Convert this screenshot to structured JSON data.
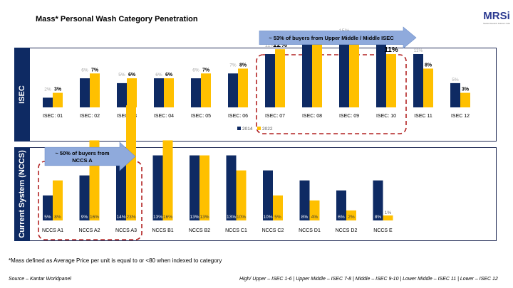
{
  "page": {
    "title": "Mass* Personal Wash Category Penetration",
    "footnote": "*Mass defined as Average Price per unit is equal to or <80 when indexed to category",
    "source": "Source – Kantar Worldpanel",
    "class_note": "High/ Upper – ISEC 1-6 | Upper Middle – ISEC 7-8 | Middle – ISEC 9-10 | Lower Middle – ISEC 11 | Lower – ISEC  12",
    "logo_text": "MRSi",
    "logo_subtext": "Market Research Solutions India"
  },
  "colors": {
    "navy": "#0e2a63",
    "gold": "#ffc000",
    "arrow": "#8faadc",
    "dash": "#b22222",
    "label_grey": "#a6a6a6"
  },
  "chart_data": [
    {
      "type": "bar",
      "panel_label": "ISEC",
      "categories": [
        "ISEC: 01",
        "ISEC: 02",
        "ISEC: 03",
        "ISEC: 04",
        "ISEC: 05",
        "ISEC: 06",
        "ISEC: 07",
        "ISEC: 08",
        "ISEC: 09",
        "ISEC: 10",
        "ISEC 11",
        "ISEC 12"
      ],
      "series": [
        {
          "name": "2014",
          "color": "#0e2a63",
          "values": [
            2,
            6,
            5,
            6,
            6,
            7,
            11,
            14,
            15,
            13,
            11,
            5
          ]
        },
        {
          "name": "2022",
          "color": "#ffc000",
          "values": [
            3,
            7,
            6,
            6,
            7,
            8,
            12,
            14,
            14,
            11,
            8,
            3
          ]
        }
      ],
      "ylim": [
        0,
        22
      ],
      "legend": "bottom",
      "callout": "~ 53% of buyers from Upper Middle / Middle ISEC",
      "highlight_range": [
        6,
        9
      ]
    },
    {
      "type": "bar",
      "panel_label": "Current System (NCCS)",
      "categories": [
        "NCCS A1",
        "NCCS A2",
        "NCCS A3",
        "NCCS B1",
        "NCCS B2",
        "NCCS C1",
        "NCCS C2",
        "NCCS D1",
        "NCCS D2",
        "NCCS E"
      ],
      "series": [
        {
          "name": "2014",
          "color": "#0e2a63",
          "values": [
            5,
            9,
            14,
            13,
            13,
            13,
            10,
            8,
            6,
            8
          ]
        },
        {
          "name": "2022",
          "color": "#ffc000",
          "values": [
            8,
            16,
            23,
            16,
            13,
            10,
            5,
            4,
            2,
            1
          ]
        }
      ],
      "ylim": [
        0,
        27
      ],
      "callout": "~ 50% of buyers from NCCS A",
      "highlight_range": [
        0,
        2
      ]
    }
  ]
}
